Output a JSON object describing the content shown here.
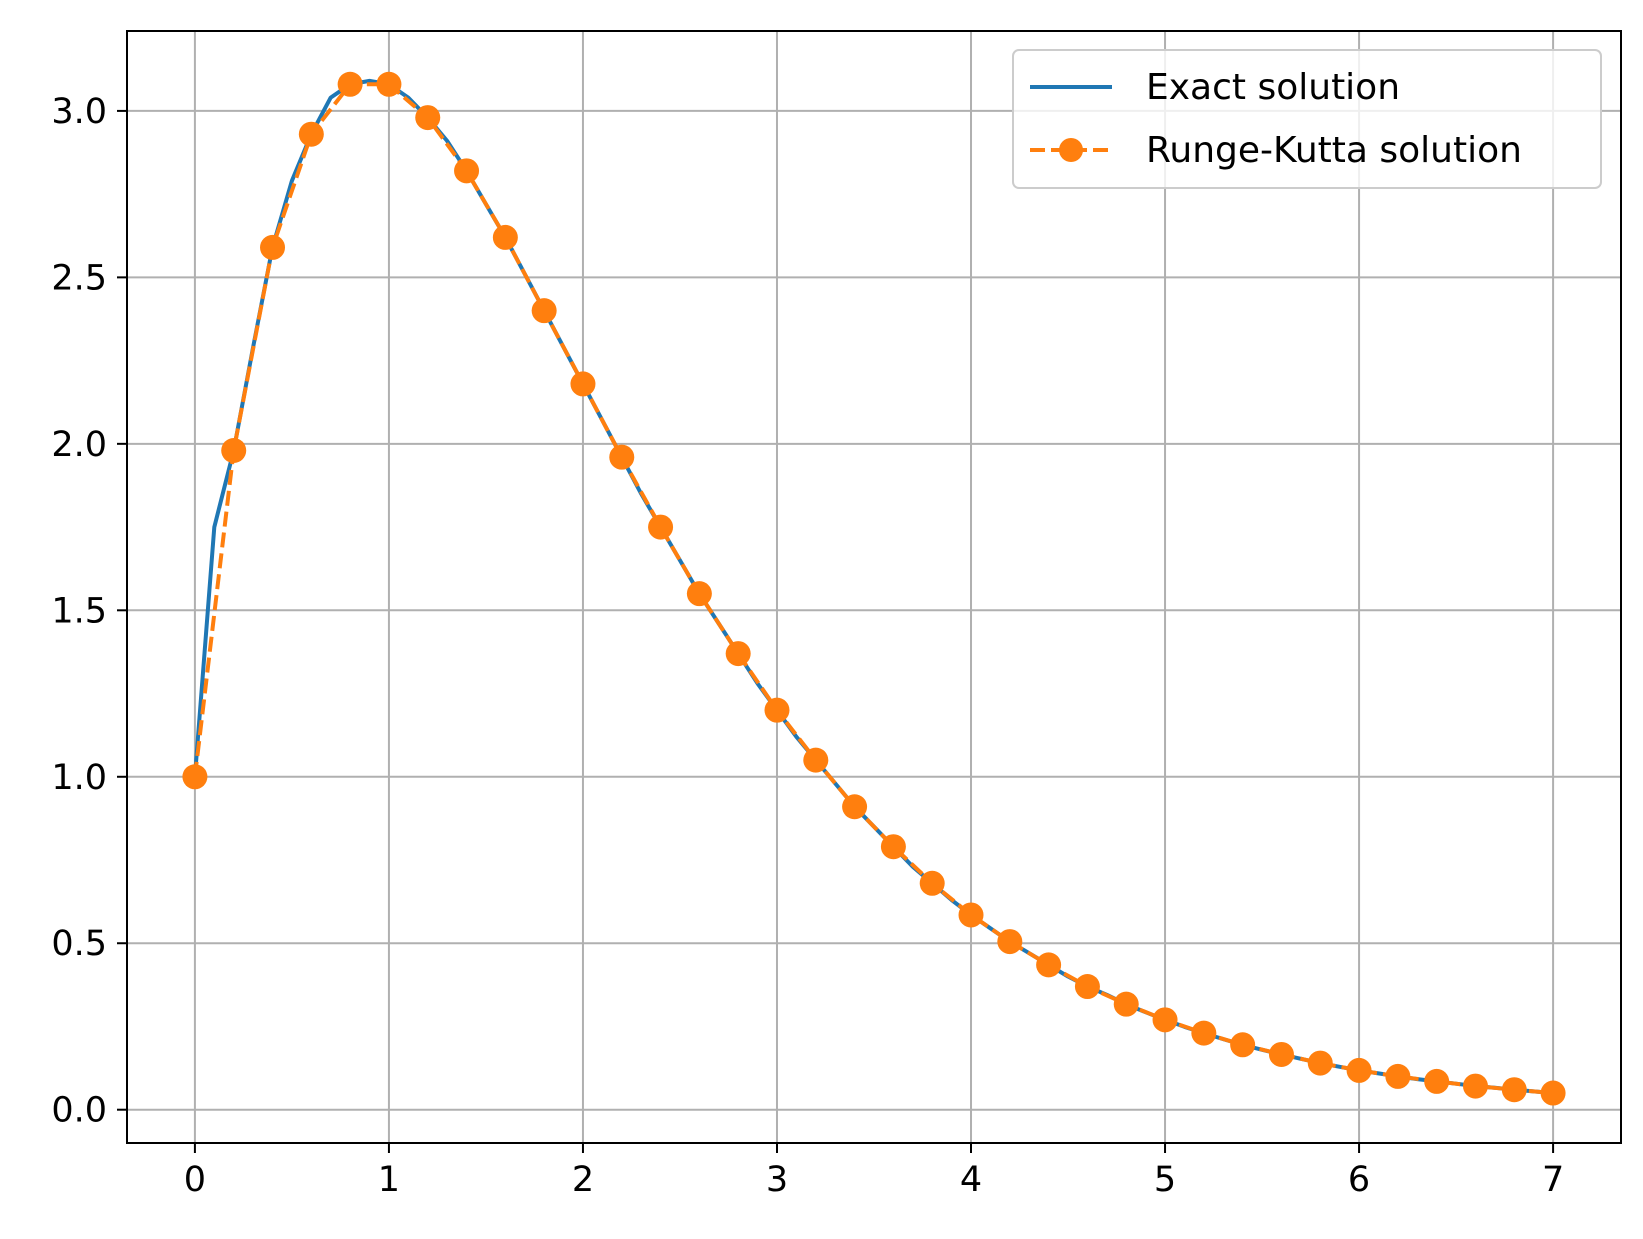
{
  "chart_data": {
    "type": "line",
    "title": "",
    "xlabel": "",
    "ylabel": "",
    "xlim": [
      -0.35,
      7.35
    ],
    "ylim": [
      -0.1,
      3.24
    ],
    "xticks": [
      0,
      1,
      2,
      3,
      4,
      5,
      6,
      7
    ],
    "xtick_labels": [
      "0",
      "1",
      "2",
      "3",
      "4",
      "5",
      "6",
      "7"
    ],
    "yticks": [
      0.0,
      0.5,
      1.0,
      1.5,
      2.0,
      2.5,
      3.0
    ],
    "ytick_labels": [
      "0.0",
      "0.5",
      "1.0",
      "1.5",
      "2.0",
      "2.5",
      "3.0"
    ],
    "grid": true,
    "legend_position": "top-right",
    "series": [
      {
        "name": "Exact solution",
        "color": "#1f77b4",
        "style": "solid",
        "x": [
          0,
          0.1,
          0.2,
          0.3,
          0.4,
          0.5,
          0.6,
          0.7,
          0.8,
          0.9,
          1.0,
          1.1,
          1.2,
          1.3,
          1.4,
          1.5,
          1.6,
          1.7,
          1.8,
          1.9,
          2.0,
          2.1,
          2.2,
          2.3,
          2.4,
          2.5,
          2.6,
          2.7,
          2.8,
          2.9,
          3.0,
          3.1,
          3.2,
          3.3,
          3.4,
          3.5,
          3.6,
          3.7,
          3.8,
          3.9,
          4.0,
          4.1,
          4.2,
          4.3,
          4.4,
          4.5,
          4.6,
          4.7,
          4.8,
          4.9,
          5.0,
          5.1,
          5.2,
          5.3,
          5.4,
          5.5,
          5.6,
          5.7,
          5.8,
          5.9,
          6.0,
          6.1,
          6.2,
          6.3,
          6.4,
          6.5,
          6.6,
          6.7,
          6.8,
          6.9,
          7.0
        ],
        "y": [
          1.0,
          1.75,
          1.98,
          2.29,
          2.59,
          2.79,
          2.93,
          3.04,
          3.08,
          3.09,
          3.08,
          3.04,
          2.98,
          2.91,
          2.82,
          2.72,
          2.62,
          2.51,
          2.4,
          2.29,
          2.18,
          2.07,
          1.96,
          1.85,
          1.75,
          1.65,
          1.55,
          1.46,
          1.37,
          1.28,
          1.2,
          1.12,
          1.05,
          0.98,
          0.91,
          0.85,
          0.79,
          0.73,
          0.68,
          0.63,
          0.585,
          0.545,
          0.505,
          0.47,
          0.435,
          0.4,
          0.37,
          0.345,
          0.317,
          0.293,
          0.27,
          0.249,
          0.23,
          0.212,
          0.195,
          0.18,
          0.166,
          0.153,
          0.14,
          0.129,
          0.118,
          0.109,
          0.1,
          0.092,
          0.085,
          0.078,
          0.071,
          0.066,
          0.06,
          0.055,
          0.05
        ]
      },
      {
        "name": "Runge-Kutta solution",
        "color": "#ff7f0e",
        "style": "dashed",
        "marker": "circle",
        "x": [
          0,
          0.2,
          0.4,
          0.6,
          0.8,
          1.0,
          1.2,
          1.4,
          1.6,
          1.8,
          2.0,
          2.2,
          2.4,
          2.6,
          2.8,
          3.0,
          3.2,
          3.4,
          3.6,
          3.8,
          4.0,
          4.2,
          4.4,
          4.6,
          4.8,
          5.0,
          5.2,
          5.4,
          5.6,
          5.8,
          6.0,
          6.2,
          6.4,
          6.6,
          6.8,
          7.0
        ],
        "y": [
          1.0,
          1.98,
          2.59,
          2.93,
          3.08,
          3.08,
          2.98,
          2.82,
          2.62,
          2.4,
          2.18,
          1.96,
          1.75,
          1.55,
          1.37,
          1.2,
          1.05,
          0.91,
          0.79,
          0.68,
          0.585,
          0.505,
          0.435,
          0.37,
          0.317,
          0.27,
          0.23,
          0.195,
          0.166,
          0.14,
          0.118,
          0.1,
          0.085,
          0.071,
          0.06,
          0.05
        ]
      }
    ]
  }
}
